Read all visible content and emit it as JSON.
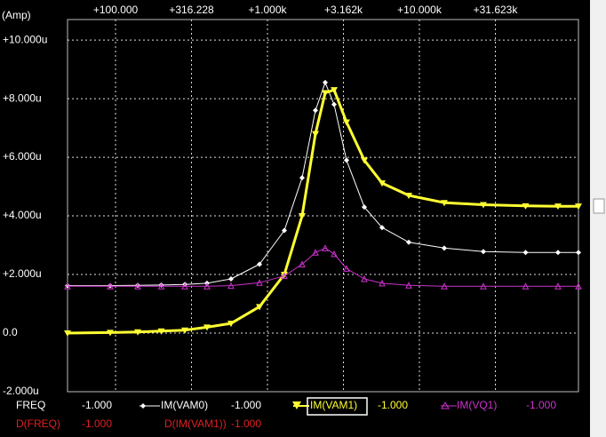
{
  "chart_data": {
    "type": "line",
    "y_label": "(Amp)",
    "xscale": "log",
    "grid": true,
    "x": [
      48.3,
      92.2,
      140,
      200,
      285.9,
      400,
      575.5,
      886,
      1291,
      1690,
      2069,
      2399,
      2746,
      3313,
      4339,
      5680,
      8506,
      14580,
      26360,
      50000,
      81700,
      111400
    ],
    "xlim": [
      48.3,
      111400
    ],
    "xticks": [
      {
        "value": 100,
        "label": "+100.000"
      },
      {
        "value": 316.228,
        "label": "+316.228"
      },
      {
        "value": 1000,
        "label": "+1.000k"
      },
      {
        "value": 3162,
        "label": "+3.162k"
      },
      {
        "value": 10000,
        "label": "+10.000k"
      },
      {
        "value": 31623,
        "label": "+31.623k"
      }
    ],
    "ylim": [
      -2e-06,
      1.07e-05
    ],
    "yticks": [
      {
        "value": 1e-05,
        "label": "+10.000u"
      },
      {
        "value": 8e-06,
        "label": "+8.000u"
      },
      {
        "value": 6e-06,
        "label": "+6.000u"
      },
      {
        "value": 4e-06,
        "label": "+4.000u"
      },
      {
        "value": 2e-06,
        "label": "+2.000u"
      },
      {
        "value": 0,
        "label": "0.0"
      },
      {
        "value": -2e-06,
        "label": "-2.000u"
      }
    ],
    "series": [
      {
        "name": "IM(VAM0)",
        "color": "#ffffff",
        "readout": "-1.000",
        "values": [
          1.62e-06,
          1.62e-06,
          1.63e-06,
          1.64e-06,
          1.66e-06,
          1.7e-06,
          1.85e-06,
          2.35e-06,
          3.5e-06,
          5.3e-06,
          7.6e-06,
          8.55e-06,
          7.8e-06,
          5.9e-06,
          4.3e-06,
          3.6e-06,
          3.1e-06,
          2.9e-06,
          2.78e-06,
          2.75e-06,
          2.75e-06,
          2.75e-06
        ]
      },
      {
        "name": "IM(VAM1)",
        "color": "#ffff33",
        "readout": "-1.000",
        "values": [
          0,
          2e-08,
          4e-08,
          7e-08,
          1e-07,
          2e-07,
          3.3e-07,
          9e-07,
          2e-06,
          4e-06,
          6.8e-06,
          8.2e-06,
          8.3e-06,
          7.2e-06,
          5.9e-06,
          5.12e-06,
          4.7e-06,
          4.45e-06,
          4.38e-06,
          4.34e-06,
          4.33e-06,
          4.33e-06
        ]
      },
      {
        "name": "IM(VQ1)",
        "color": "#cc33cc",
        "readout": "-1.000",
        "values": [
          1.6e-06,
          1.6e-06,
          1.6e-06,
          1.6e-06,
          1.6e-06,
          1.6e-06,
          1.62e-06,
          1.72e-06,
          1.95e-06,
          2.35e-06,
          2.75e-06,
          2.9e-06,
          2.7e-06,
          2.2e-06,
          1.85e-06,
          1.7e-06,
          1.63e-06,
          1.6e-06,
          1.6e-06,
          1.6e-06,
          1.6e-06,
          1.6e-06
        ]
      }
    ],
    "readouts": [
      {
        "label": "FREQ",
        "value": "-1.000"
      },
      {
        "label": "D(FREQ)",
        "value": "-1.000"
      },
      {
        "label": "D(IM(VAM1))",
        "value": "-1.000"
      }
    ]
  }
}
